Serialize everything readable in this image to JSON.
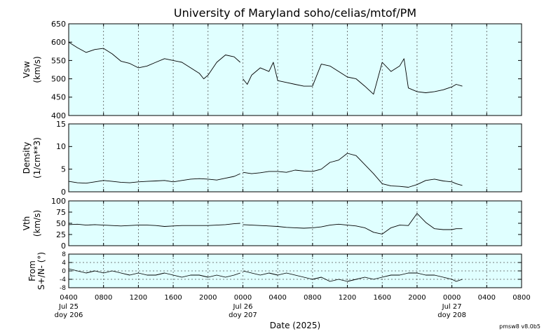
{
  "header": {
    "title": "University of Maryland  soho/celias/mtof/PM"
  },
  "footer": {
    "xlabel": "Date (2025)",
    "version": "pmsw8 v8.0b5"
  },
  "chart_data": {
    "type": "line",
    "title": "University of Maryland  soho/celias/mtof/PM",
    "xlabel": "Date (2025)",
    "x_units": "hours since 2025 Jul 25 00:00 UT",
    "xlim": [
      4,
      56
    ],
    "x_tick_labels": [
      "0400",
      "0800",
      "1200",
      "1600",
      "2000",
      "0000",
      "0400",
      "0800",
      "1200",
      "1600",
      "2000",
      "0000",
      "0400",
      "0800"
    ],
    "day_labels": [
      {
        "x": 0,
        "date": "Jul 25",
        "doy": "doy 206"
      },
      {
        "x": 24,
        "date": "Jul 26",
        "doy": "doy 207"
      },
      {
        "x": 48,
        "date": "Jul 27",
        "doy": "doy 208"
      }
    ],
    "grid": true,
    "background": "#e0ffff",
    "line_color": "#000000",
    "panels": [
      {
        "ylabel_top": "Vsw",
        "ylabel_bottom": "(km/s)",
        "ylim": [
          400,
          650
        ],
        "yticks": [
          400,
          450,
          500,
          550,
          600,
          650
        ],
        "hgrid": false,
        "series": [
          {
            "x": [
              4,
              5,
              6,
              7,
              8,
              9,
              10,
              11,
              12,
              13,
              14,
              15,
              16,
              17,
              18,
              19,
              19.5,
              20,
              21,
              22,
              23,
              23.7
            ],
            "values": [
              600,
              585,
              572,
              580,
              583,
              568,
              548,
              542,
              530,
              535,
              545,
              555,
              550,
              545,
              530,
              515,
              500,
              510,
              545,
              565,
              560,
              545
            ]
          },
          {
            "x": [
              24,
              24.5,
              25,
              26,
              27,
              27.5,
              28,
              29,
              30,
              31,
              32,
              33,
              34,
              35,
              36,
              37,
              38,
              39,
              40,
              41,
              42,
              42.5,
              43,
              44,
              45,
              46,
              47,
              48,
              48.5,
              49.2
            ],
            "values": [
              500,
              485,
              510,
              530,
              520,
              545,
              495,
              490,
              485,
              480,
              480,
              540,
              535,
              520,
              505,
              500,
              480,
              458,
              545,
              520,
              535,
              555,
              475,
              465,
              462,
              465,
              470,
              478,
              485,
              480
            ]
          }
        ]
      },
      {
        "ylabel_top": "Density",
        "ylabel_bottom": "(1/cm**3)",
        "ylim": [
          0,
          15
        ],
        "yticks": [
          0,
          5,
          10,
          15
        ],
        "hgrid": false,
        "series": [
          {
            "x": [
              4,
              5,
              6,
              7,
              8,
              9,
              10,
              11,
              12,
              13,
              14,
              15,
              16,
              17,
              18,
              19,
              20,
              21,
              22,
              23,
              23.7
            ],
            "values": [
              2.3,
              2.0,
              1.9,
              2.2,
              2.5,
              2.3,
              2.1,
              2.0,
              2.2,
              2.3,
              2.4,
              2.5,
              2.2,
              2.5,
              2.8,
              2.9,
              2.8,
              2.6,
              3.0,
              3.4,
              4.0
            ]
          },
          {
            "x": [
              24,
              25,
              26,
              27,
              28,
              29,
              30,
              31,
              32,
              33,
              34,
              35,
              36,
              37,
              38,
              39,
              40,
              41,
              42,
              43,
              44,
              45,
              46,
              47,
              48,
              48.5,
              49.2
            ],
            "values": [
              4.3,
              4.0,
              4.2,
              4.5,
              4.5,
              4.3,
              4.8,
              4.6,
              4.5,
              5.0,
              6.5,
              7.0,
              8.5,
              8.0,
              6.0,
              4.0,
              1.8,
              1.3,
              1.2,
              1.0,
              1.6,
              2.5,
              2.8,
              2.4,
              2.2,
              1.8,
              1.4
            ]
          }
        ]
      },
      {
        "ylabel_top": "Vth",
        "ylabel_bottom": "(km/s)",
        "ylim": [
          0,
          100
        ],
        "yticks": [
          0,
          25,
          50,
          75,
          100
        ],
        "hgrid": false,
        "series": [
          {
            "x": [
              4,
              5,
              6,
              7,
              8,
              9,
              10,
              11,
              12,
              13,
              14,
              15,
              16,
              17,
              18,
              19,
              20,
              21,
              22,
              23,
              23.7
            ],
            "values": [
              47,
              48,
              46,
              47,
              46,
              45,
              44,
              45,
              46,
              46,
              45,
              43,
              44,
              45,
              45,
              45,
              45,
              46,
              47,
              49,
              50
            ]
          },
          {
            "x": [
              24,
              25,
              26,
              27,
              28,
              29,
              30,
              31,
              32,
              33,
              34,
              35,
              36,
              37,
              38,
              39,
              40,
              41,
              42,
              43,
              44,
              45,
              46,
              47,
              48,
              48.5,
              49.2
            ],
            "values": [
              47,
              46,
              45,
              44,
              43,
              41,
              40,
              39,
              40,
              42,
              46,
              48,
              46,
              44,
              40,
              30,
              26,
              40,
              46,
              45,
              72,
              52,
              38,
              36,
              36,
              38,
              38
            ]
          }
        ]
      },
      {
        "ylabel_top": "From",
        "ylabel_bottom": "S+/N- (°)",
        "ylim": [
          -8,
          8
        ],
        "yticks": [
          -8,
          -4,
          0,
          4,
          8
        ],
        "hgrid": true,
        "series": [
          {
            "x": [
              4,
              5,
              6,
              7,
              8,
              9,
              10,
              11,
              12,
              13,
              14,
              15,
              16,
              17,
              18,
              19,
              20,
              21,
              22,
              23,
              23.7
            ],
            "values": [
              1,
              0,
              -1,
              0,
              -1,
              0,
              -1,
              -2,
              -1,
              -2,
              -2,
              -1,
              -2,
              -3,
              -2,
              -2,
              -3,
              -2,
              -3,
              -2,
              -1
            ]
          },
          {
            "x": [
              24,
              25,
              26,
              27,
              28,
              29,
              30,
              31,
              32,
              33,
              34,
              35,
              36,
              37,
              38,
              39,
              40,
              41,
              42,
              43,
              44,
              45,
              46,
              47,
              48,
              48.5,
              49.2
            ],
            "values": [
              0,
              -1,
              -2,
              -1,
              -2,
              -1,
              -2,
              -3,
              -4,
              -3,
              -5,
              -4,
              -5,
              -4,
              -3,
              -4,
              -3,
              -2,
              -2,
              -1,
              -1,
              -2,
              -2,
              -3,
              -4,
              -5,
              -4
            ]
          }
        ]
      }
    ]
  }
}
